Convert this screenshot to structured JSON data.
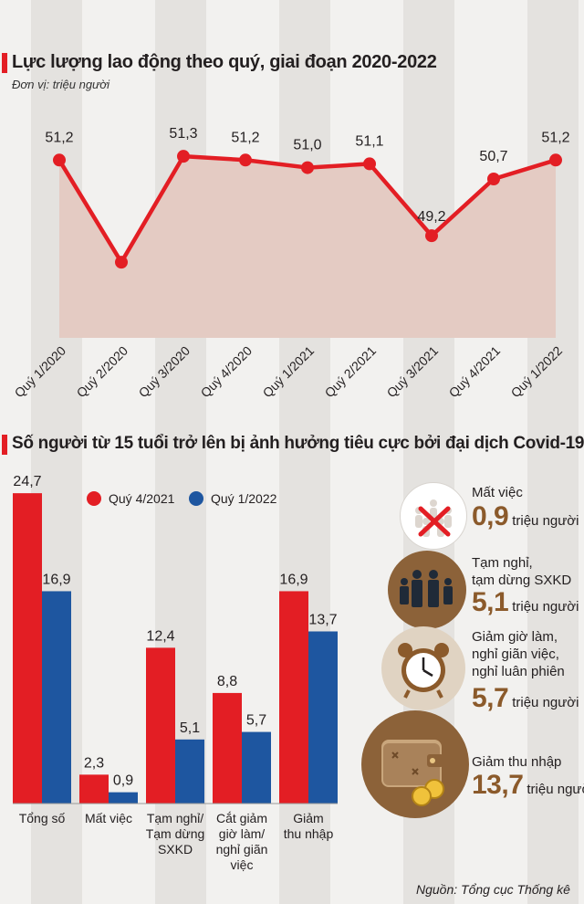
{
  "chart_data": [
    {
      "type": "area",
      "title": "Lực lượng lao động theo quý, giai đoạn 2020-2022",
      "unit_label": "Đơn vị: triệu người",
      "categories": [
        "Quý 1/2020",
        "Quý 2/2020",
        "Quý 3/2020",
        "Quý 4/2020",
        "Quý 1/2021",
        "Quý 2/2021",
        "Quý 3/2021",
        "Quý 4/2021",
        "Quý 1/2022"
      ],
      "values": [
        51.2,
        null,
        51.3,
        51.2,
        51.0,
        51.1,
        49.2,
        50.7,
        51.2
      ],
      "plotted_values": [
        51.2,
        48.5,
        51.3,
        51.2,
        51.0,
        51.1,
        49.2,
        50.7,
        51.2
      ],
      "value_labels": [
        "51,2",
        "",
        "51,3",
        "51,2",
        "51,0",
        "51,1",
        "49,2",
        "50,7",
        "51,2"
      ],
      "ylim": [
        46.5,
        53.5
      ],
      "line_color": "#e31e24",
      "area_color": "#e4cbc3"
    },
    {
      "type": "bar",
      "title": "Số người từ 15 tuổi trở lên bị ảnh hưởng tiêu cực bởi đại dịch Covid-19",
      "categories": [
        "Tổng số",
        "Mất việc",
        "Tạm nghỉ/ Tạm dừng SXKD",
        "Cắt giảm giờ làm/ nghỉ giãn việc",
        "Giảm thu nhập"
      ],
      "category_lines": [
        [
          "Tổng số"
        ],
        [
          "Mất việc"
        ],
        [
          "Tạm nghỉ/",
          "Tạm dừng",
          "SXKD"
        ],
        [
          "Cắt giảm",
          "giờ làm/",
          "nghỉ giãn việc"
        ],
        [
          "Giảm",
          "thu nhập"
        ]
      ],
      "series": [
        {
          "name": "Quý 4/2021",
          "color": "#e31e24",
          "values": [
            24.7,
            2.3,
            12.4,
            8.8,
            16.9
          ],
          "labels": [
            "24,7",
            "2,3",
            "12,4",
            "8,8",
            "16,9"
          ]
        },
        {
          "name": "Quý 1/2022",
          "color": "#1e56a0",
          "values": [
            16.9,
            0.9,
            5.1,
            5.7,
            13.7
          ],
          "labels": [
            "16,9",
            "0,9",
            "5,1",
            "5,7",
            "13,7"
          ]
        }
      ],
      "ylim": [
        0,
        25
      ]
    }
  ],
  "cards": [
    {
      "label_lines": [
        "Mất việc"
      ],
      "value": "0,9",
      "unit": "triệu người",
      "icon": "crossed-out-crowd-icon"
    },
    {
      "label_lines": [
        "Tạm nghỉ,",
        "tạm dừng SXKD"
      ],
      "value": "5,1",
      "unit": "triệu người",
      "icon": "workers-group-icon"
    },
    {
      "label_lines": [
        "Giảm giờ làm,",
        "nghỉ giãn việc,",
        "nghỉ luân phiên"
      ],
      "value": "5,7",
      "unit": "triệu người",
      "icon": "alarm-clock-icon"
    },
    {
      "label_lines": [
        "Giảm thu nhập"
      ],
      "value": "13,7",
      "unit": "triệu người",
      "icon": "wallet-coins-icon"
    }
  ],
  "source": "Nguồn: Tổng cục Thống kê"
}
